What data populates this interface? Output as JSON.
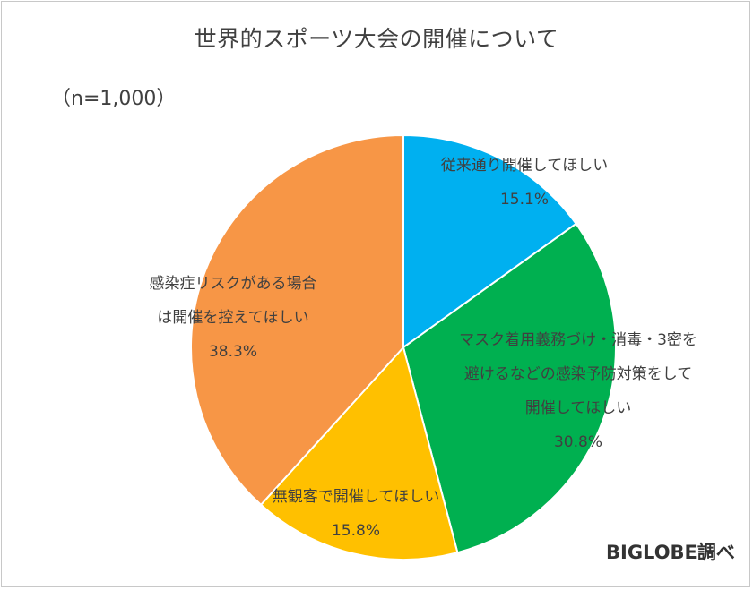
{
  "chart_data": {
    "type": "pie",
    "title": "世界的スポーツ大会の開催について",
    "subtitle": "（n=1,000）",
    "source": "BIGLOBE調べ",
    "slices": [
      {
        "name": "従来通り開催してほしい",
        "value": 15.1,
        "value_label": "15.1%",
        "color": "#00b0f0",
        "label_lines": [
          "従来通り開催してほしい"
        ]
      },
      {
        "name": "マスク着用義務づけ・消毒・3密を避けるなどの感染予防対策をして開催してほしい",
        "value": 30.8,
        "value_label": "30.8%",
        "color": "#00b050",
        "label_lines": [
          "マスク着用義務づけ・消毒・3密を",
          "避けるなどの感染予防対策をして",
          "開催してほしい"
        ]
      },
      {
        "name": "無観客で開催してほしい",
        "value": 15.8,
        "value_label": "15.8%",
        "color": "#ffc000",
        "label_lines": [
          "無観客で開催してほしい"
        ]
      },
      {
        "name": "感染症リスクがある場合は開催を控えてほしい",
        "value": 38.3,
        "value_label": "38.3%",
        "color": "#f79646",
        "label_lines": [
          "感染症リスクがある場合",
          "は開催を控えてほしい"
        ]
      }
    ]
  }
}
